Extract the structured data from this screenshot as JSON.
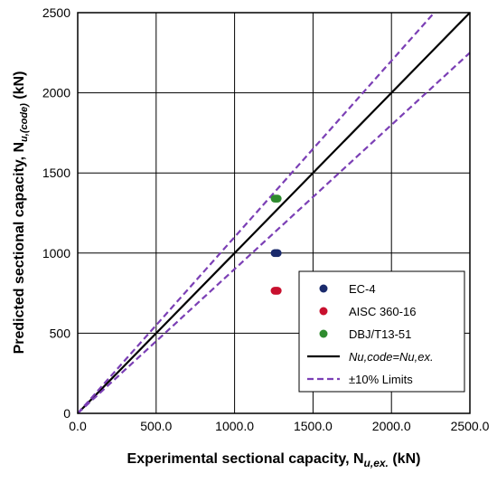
{
  "chart_data": {
    "type": "scatter",
    "xlabel": "Experimental sectional capacity, N",
    "xlabel_sub": "u,ex.",
    "xlabel_unit": " (kN)",
    "ylabel": "Predicted sectional capacity, N",
    "ylabel_sub": "u,(code)",
    "ylabel_unit": " (kN)",
    "xlim": [
      0,
      2500
    ],
    "ylim": [
      0,
      2500
    ],
    "xticks": [
      0,
      500,
      1000,
      1500,
      2000,
      2500
    ],
    "yticks": [
      0,
      500,
      1000,
      1500,
      2000,
      2500
    ],
    "xtick_labels": [
      "0.0",
      "500.0",
      "1000.0",
      "1500.0",
      "2000.0",
      "2500.0"
    ],
    "ytick_labels": [
      "0",
      "500",
      "1000",
      "1500",
      "2000",
      "2500"
    ],
    "grid": true,
    "legend_position": "bottom-right",
    "series": [
      {
        "name": "EC-4",
        "color": "#1a2a6c",
        "points": [
          [
            1255,
            1000
          ],
          [
            1262,
            1000
          ],
          [
            1268,
            1000
          ],
          [
            1275,
            1000
          ]
        ]
      },
      {
        "name": "AISC 360-16",
        "color": "#c8102e",
        "points": [
          [
            1255,
            765
          ],
          [
            1262,
            765
          ],
          [
            1268,
            765
          ],
          [
            1275,
            765
          ]
        ]
      },
      {
        "name": "DBJ/T13-51",
        "color": "#2e8b2e",
        "points": [
          [
            1255,
            1340
          ],
          [
            1262,
            1340
          ],
          [
            1268,
            1340
          ],
          [
            1275,
            1340
          ]
        ]
      }
    ],
    "lines": [
      {
        "name": "Nu,code=Nu,ex.",
        "color": "#000000",
        "style": "solid",
        "slope": 1.0
      },
      {
        "name": "±10% Limits",
        "color": "#7b3fb5",
        "style": "dashed",
        "slope": 1.1
      },
      {
        "name": "±10% Limits",
        "color": "#7b3fb5",
        "style": "dashed",
        "slope": 0.9,
        "show_in_legend": false
      }
    ]
  }
}
